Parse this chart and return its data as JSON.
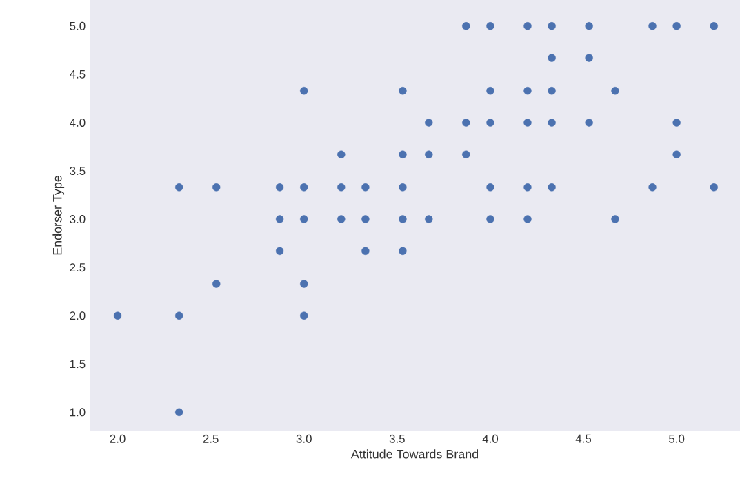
{
  "chart_data": {
    "type": "scatter",
    "xlabel": "Attitude Towards Brand",
    "ylabel": "Endorser Type",
    "x": [
      3.87,
      4.0,
      4.2,
      4.33,
      4.53,
      4.87,
      5.0,
      5.2,
      4.33,
      4.53,
      3.0,
      3.53,
      4.0,
      4.2,
      4.33,
      4.67,
      3.67,
      3.87,
      4.0,
      4.2,
      4.33,
      4.53,
      5.0,
      3.2,
      3.53,
      3.67,
      3.87,
      5.0,
      2.33,
      2.53,
      2.87,
      3.0,
      3.2,
      3.33,
      3.53,
      4.0,
      4.2,
      4.33,
      4.87,
      5.2,
      2.87,
      3.0,
      3.2,
      3.33,
      3.53,
      3.67,
      4.0,
      4.2,
      4.67,
      2.87,
      3.33,
      3.53,
      2.53,
      3.0,
      2.0,
      2.33,
      3.0,
      2.33
    ],
    "values": [
      5.0,
      5.0,
      5.0,
      5.0,
      5.0,
      5.0,
      5.0,
      5.0,
      4.67,
      4.67,
      4.33,
      4.33,
      4.33,
      4.33,
      4.33,
      4.33,
      4.0,
      4.0,
      4.0,
      4.0,
      4.0,
      4.0,
      4.0,
      3.67,
      3.67,
      3.67,
      3.67,
      3.67,
      3.33,
      3.33,
      3.33,
      3.33,
      3.33,
      3.33,
      3.33,
      3.33,
      3.33,
      3.33,
      3.33,
      3.33,
      3.0,
      3.0,
      3.0,
      3.0,
      3.0,
      3.0,
      3.0,
      3.0,
      3.0,
      2.67,
      2.67,
      2.67,
      2.33,
      2.33,
      2.0,
      2.0,
      2.0,
      1.0
    ],
    "color": "#4c72b0",
    "marker": "circle",
    "grid": false,
    "xlim": [
      1.85,
      5.34
    ],
    "ylim": [
      0.81,
      5.27
    ],
    "xticks": [
      {
        "value": 2,
        "label": "2.0"
      },
      {
        "value": 2.5,
        "label": "2.5"
      },
      {
        "value": 3,
        "label": "3.0"
      },
      {
        "value": 3.5,
        "label": "3.5"
      },
      {
        "value": 4,
        "label": "4.0"
      },
      {
        "value": 4.5,
        "label": "4.5"
      },
      {
        "value": 5,
        "label": "5.0"
      }
    ],
    "yticks": [
      {
        "value": 1,
        "label": "1.0"
      },
      {
        "value": 1.5,
        "label": "1.5"
      },
      {
        "value": 2,
        "label": "2.0"
      },
      {
        "value": 2.5,
        "label": "2.5"
      },
      {
        "value": 3,
        "label": "3.0"
      },
      {
        "value": 3.5,
        "label": "3.5"
      },
      {
        "value": 4,
        "label": "4.0"
      },
      {
        "value": 4.5,
        "label": "4.5"
      },
      {
        "value": 5,
        "label": "5.0"
      }
    ]
  }
}
